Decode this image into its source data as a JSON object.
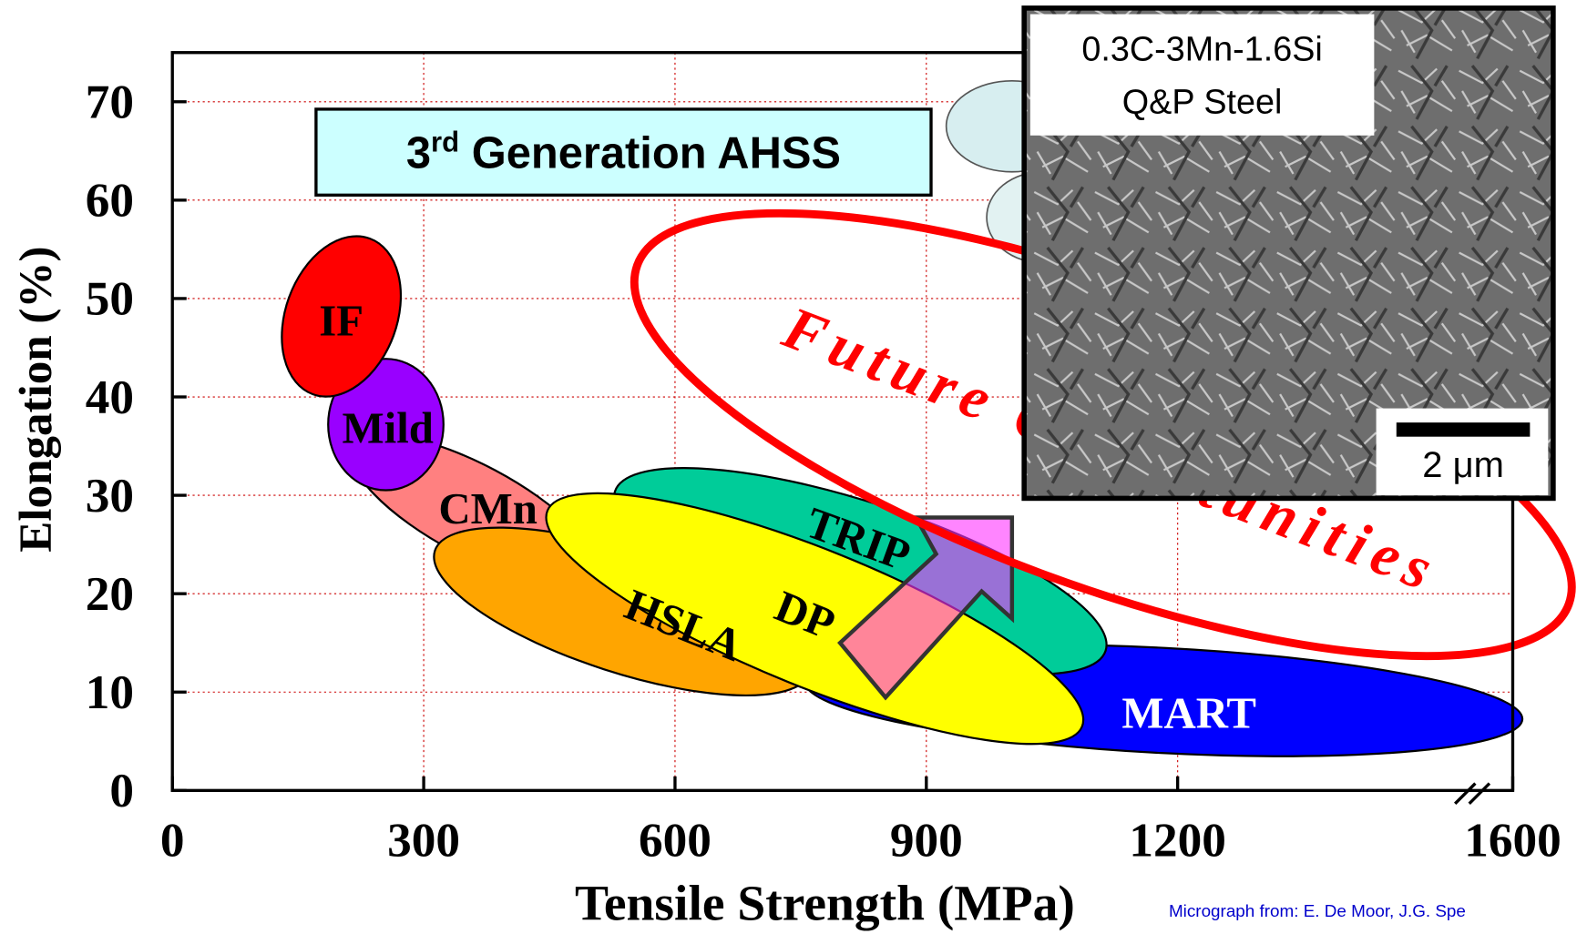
{
  "chart_data": {
    "type": "region",
    "title_number": "3",
    "title_sup": "rd",
    "title_rest": " Generation AHSS",
    "xlabel": "Tensile Strength (MPa)",
    "ylabel": "Elongation (%)",
    "xlim": [
      0,
      1600
    ],
    "ylim": [
      0,
      75
    ],
    "xticks": [
      0,
      300,
      600,
      900,
      1200,
      1600
    ],
    "yticks": [
      0,
      10,
      20,
      30,
      40,
      50,
      60,
      70
    ],
    "grid": true,
    "grid_color": "#cc0000",
    "regions": [
      {
        "name": "CMn",
        "color": "#ff8080"
      },
      {
        "name": "Mild",
        "color": "#9900ff"
      },
      {
        "name": "IF",
        "color": "#ff0000"
      },
      {
        "name": "HSLA",
        "color": "#ffa500"
      },
      {
        "name": "MART",
        "color": "#0000ff"
      },
      {
        "name": "TRIP",
        "color": "#00cc99"
      },
      {
        "name": "DP",
        "color": "#ffff00"
      }
    ],
    "annotation": "Future Opportunities",
    "micrograph": {
      "line1": "0.3C-3Mn-1.6Si",
      "line2": "Q&P Steel",
      "scale_bar": "2 μm"
    },
    "credit": "Micrograph from:  E. De Moor, J.G. Spe"
  }
}
